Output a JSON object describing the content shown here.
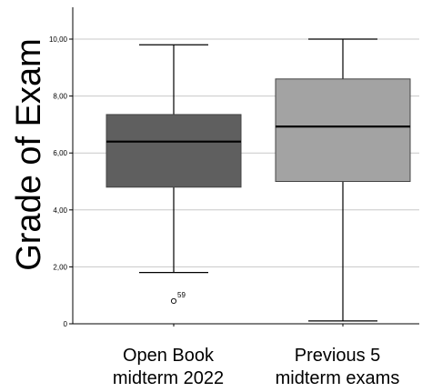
{
  "chart_data": {
    "type": "boxplot",
    "ylabel": "Grade of Exam",
    "ylim": [
      0,
      10.4
    ],
    "yticks": [
      0,
      2,
      4,
      6,
      8,
      10
    ],
    "ytick_labels": [
      "0",
      "2,00",
      "4,00",
      "6,00",
      "8,00",
      "10,00"
    ],
    "grid": "horizontal",
    "categories": [
      {
        "line1": "Open Book",
        "line2": "midterm 2022"
      },
      {
        "line1": "Previous 5",
        "line2": "midterm exams"
      }
    ],
    "boxes": [
      {
        "whisker_low": 1.8,
        "q1": 4.8,
        "median": 6.4,
        "q3": 7.35,
        "whisker_high": 9.8,
        "color": "#5f5f5f",
        "outliers": [
          {
            "value": 0.8,
            "label": "59"
          }
        ]
      },
      {
        "whisker_low": 0.1,
        "q1": 5.0,
        "median": 6.93,
        "q3": 8.6,
        "whisker_high": 10.0,
        "color": "#a3a3a3",
        "outliers": []
      }
    ]
  }
}
